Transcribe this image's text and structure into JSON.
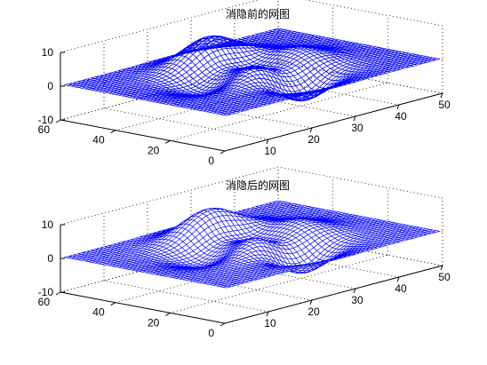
{
  "chart_data": [
    {
      "type": "surface-mesh",
      "title": "消隐前的网图",
      "hidden_line_removal": false,
      "mesh_color": "#0000ff",
      "xlabel": "",
      "ylabel": "",
      "zlabel": "",
      "xlim": [
        0,
        50
      ],
      "ylim": [
        0,
        60
      ],
      "zlim": [
        -10,
        10
      ],
      "xticks": [
        "10",
        "20",
        "30",
        "40",
        "50"
      ],
      "yticks": [
        "0",
        "20",
        "40",
        "60"
      ],
      "zticks": [
        "-10",
        "0",
        "10"
      ],
      "surface": "peaks",
      "grid_size": [
        49,
        49
      ],
      "grid": true,
      "box": false
    },
    {
      "type": "surface-mesh",
      "title": "消隐后的网图",
      "hidden_line_removal": true,
      "mesh_color": "#0000ff",
      "xlabel": "",
      "ylabel": "",
      "zlabel": "",
      "xlim": [
        0,
        50
      ],
      "ylim": [
        0,
        60
      ],
      "zlim": [
        -10,
        10
      ],
      "xticks": [
        "10",
        "20",
        "30",
        "40",
        "50"
      ],
      "yticks": [
        "0",
        "20",
        "40",
        "60"
      ],
      "zticks": [
        "-10",
        "0",
        "10"
      ],
      "surface": "peaks",
      "grid_size": [
        49,
        49
      ],
      "grid": true,
      "box": false
    }
  ]
}
